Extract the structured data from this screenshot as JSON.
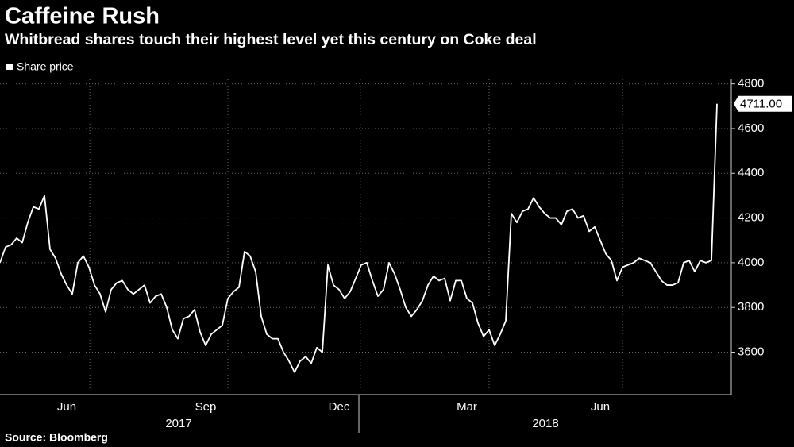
{
  "chart_data": {
    "type": "line",
    "title": "Caffeine Rush",
    "subtitle": "Whitbread shares touch their highest level yet this century on Coke deal",
    "source": "Source: Bloomberg",
    "x_group_labels": [
      "2017",
      "2018"
    ],
    "categories": [
      null,
      null,
      null,
      null,
      null,
      null,
      null,
      null,
      null,
      null,
      null,
      null,
      "Jun",
      null,
      null,
      null,
      null,
      null,
      null,
      null,
      null,
      null,
      null,
      null,
      null,
      null,
      null,
      null,
      null,
      null,
      null,
      null,
      null,
      null,
      null,
      null,
      null,
      "Sep",
      null,
      null,
      null,
      null,
      null,
      null,
      null,
      null,
      null,
      null,
      null,
      null,
      null,
      null,
      null,
      null,
      null,
      null,
      null,
      null,
      null,
      null,
      null,
      "Dec",
      null,
      null,
      null,
      null,
      null,
      null,
      null,
      null,
      null,
      null,
      null,
      null,
      null,
      null,
      null,
      null,
      null,
      null,
      null,
      null,
      null,
      null,
      "Mar",
      null,
      null,
      null,
      null,
      null,
      null,
      null,
      null,
      null,
      null,
      null,
      null,
      null,
      null,
      null,
      null,
      null,
      null,
      null,
      null,
      null,
      null,
      null,
      "Jun",
      null,
      null,
      null,
      null,
      null,
      null,
      null,
      null,
      null,
      null,
      null,
      null,
      null,
      null,
      null,
      null,
      null,
      null,
      null,
      null,
      null
    ],
    "series": [
      {
        "name": "Share price",
        "color": "#ffffff",
        "values": [
          4000,
          4070,
          4080,
          4110,
          4090,
          4180,
          4250,
          4240,
          4300,
          4060,
          4020,
          3950,
          3900,
          3860,
          4000,
          4030,
          3980,
          3900,
          3860,
          3780,
          3880,
          3910,
          3920,
          3880,
          3860,
          3880,
          3900,
          3820,
          3850,
          3860,
          3800,
          3700,
          3660,
          3750,
          3760,
          3790,
          3690,
          3630,
          3680,
          3700,
          3720,
          3840,
          3870,
          3890,
          4050,
          4030,
          3960,
          3760,
          3680,
          3660,
          3660,
          3600,
          3560,
          3510,
          3560,
          3580,
          3550,
          3620,
          3600,
          3990,
          3900,
          3880,
          3840,
          3870,
          3930,
          3990,
          4000,
          3920,
          3850,
          3880,
          4000,
          3950,
          3880,
          3800,
          3760,
          3790,
          3830,
          3900,
          3940,
          3920,
          3930,
          3830,
          3920,
          3920,
          3840,
          3820,
          3730,
          3670,
          3700,
          3630,
          3680,
          3740,
          4220,
          4180,
          4230,
          4240,
          4290,
          4250,
          4220,
          4200,
          4200,
          4170,
          4230,
          4240,
          4200,
          4210,
          4140,
          4160,
          4100,
          4040,
          4010,
          3920,
          3980,
          3990,
          4000,
          4020,
          4010,
          4000,
          3960,
          3920,
          3900,
          3900,
          3910,
          4000,
          4010,
          3960,
          4010,
          4000,
          4010,
          4711
        ],
        "value_labels": [
          null,
          null,
          null,
          null,
          null,
          null,
          null,
          null,
          null,
          null,
          null,
          null,
          null,
          null,
          null,
          null,
          null,
          null,
          null,
          null,
          null,
          null,
          null,
          null,
          null,
          null,
          null,
          null,
          null,
          null,
          null,
          null,
          null,
          null,
          null,
          null,
          null,
          null,
          null,
          null,
          null,
          null,
          null,
          null,
          null,
          null,
          null,
          null,
          null,
          null,
          null,
          null,
          null,
          null,
          null,
          null,
          null,
          null,
          null,
          null,
          null,
          null,
          null,
          null,
          null,
          null,
          null,
          null,
          null,
          null,
          null,
          null,
          null,
          null,
          null,
          null,
          null,
          null,
          null,
          null,
          null,
          null,
          null,
          null,
          null,
          null,
          null,
          null,
          null,
          null,
          null,
          null,
          null,
          null,
          null,
          null,
          null,
          null,
          null,
          null,
          null,
          null,
          null,
          null,
          null,
          null,
          null,
          null,
          null,
          null,
          null,
          null,
          null,
          null,
          null,
          null,
          null,
          null,
          null,
          null,
          null,
          null,
          null,
          null,
          null,
          null,
          null,
          null,
          null,
          "4711.00"
        ]
      }
    ],
    "ylim": [
      3410,
      4820
    ],
    "yticks": [
      3600,
      3800,
      4000,
      4200,
      4400,
      4600,
      4800
    ],
    "grid": true,
    "legend": "top-left"
  }
}
